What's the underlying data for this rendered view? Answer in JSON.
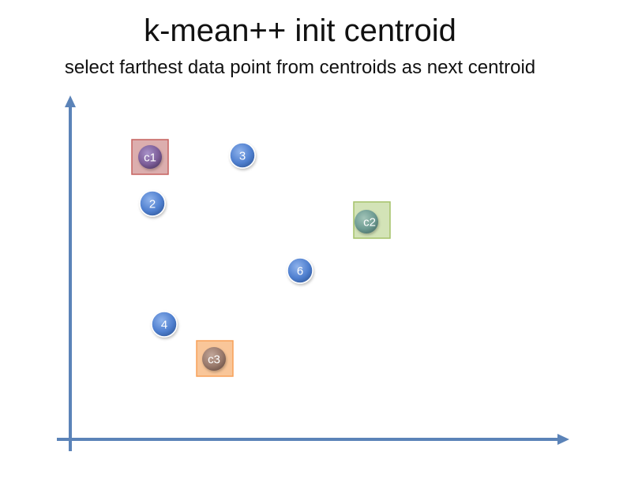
{
  "title": "k-mean++ init centroid",
  "subtitle": "select farthest data point from centroids as next centroid",
  "colors": {
    "axis": "#5b83b8",
    "point": "#4f7fcf",
    "c1_box": "#c0504d",
    "c2_box": "#9bbb59",
    "c3_box": "#f79646"
  },
  "points": [
    {
      "label": "c1",
      "type": "centroid",
      "box": "c1_box"
    },
    {
      "label": "3",
      "type": "data"
    },
    {
      "label": "2",
      "type": "data"
    },
    {
      "label": "c2",
      "type": "centroid",
      "box": "c2_box"
    },
    {
      "label": "6",
      "type": "data"
    },
    {
      "label": "4",
      "type": "data"
    },
    {
      "label": "c3",
      "type": "centroid",
      "box": "c3_box"
    }
  ]
}
